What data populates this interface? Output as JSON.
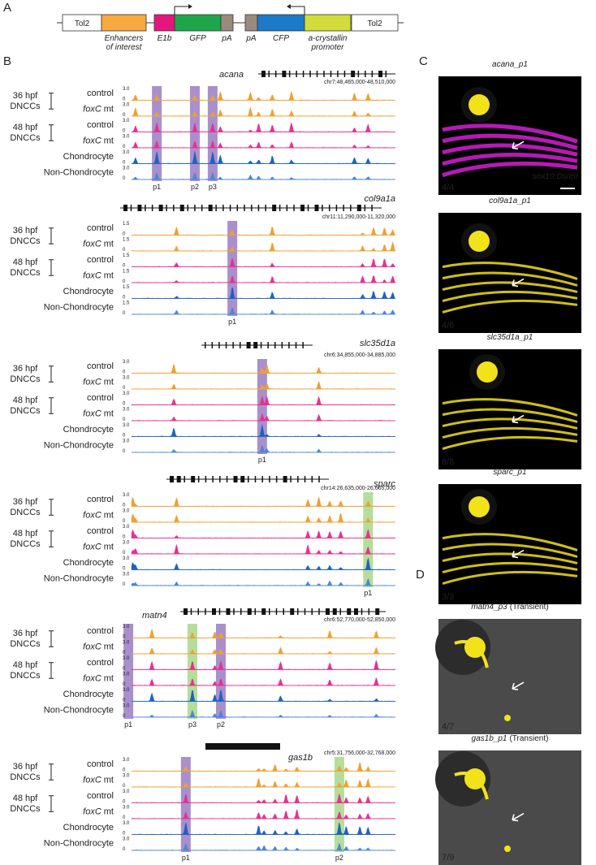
{
  "panel_labels": [
    "A",
    "B",
    "C",
    "D"
  ],
  "construct": {
    "parts": [
      [
        "Tol2"
      ],
      [
        "Enhancers",
        "of interest"
      ],
      [
        "E1b"
      ],
      [
        "GFP"
      ],
      [
        "pA"
      ],
      [
        "pA"
      ],
      [
        "CFP"
      ],
      [
        "a-crystallin",
        "promoter"
      ],
      [
        "Tol2"
      ]
    ]
  },
  "tracks": {
    "labels": {
      "stages": [
        {
          "time": "36 hpf",
          "cell": "DNCCs"
        },
        {
          "time": "48 hpf",
          "cell": "DNCCs"
        }
      ],
      "control": "control",
      "mutant": {
        "gene": "foxC",
        "suffix": "mt"
      },
      "chondrocyte": "Chondrocyte",
      "non_chondrocyte": "Non-Chondrocyte"
    },
    "groups": [
      {
        "gene": "acana",
        "coords": "chr7:48,465,000-48,510,000",
        "scale_max": "3.0",
        "scale_min": 0,
        "regions": [
          {
            "label": "p1",
            "color": "#9a7cc4"
          },
          {
            "label": "p2",
            "color": "#9a7cc4"
          },
          {
            "label": "p3",
            "color": "#9a7cc4"
          }
        ]
      },
      {
        "gene": "col9a1a",
        "coords": "chr11:11,290,000-11,320,000",
        "scale_max": "1.5",
        "scale_min": 0,
        "regions": [
          {
            "label": "p1",
            "color": "#9a7cc4"
          }
        ]
      },
      {
        "gene": "slc35d1a",
        "coords": "chr6:34,855,000-34,885,000",
        "scale_max": "3.0",
        "scale_min": 0,
        "regions": [
          {
            "label": "p1",
            "color": "#9a7cc4"
          }
        ]
      },
      {
        "gene": "sparc",
        "coords": "chr14:26,635,000-26,665,000",
        "scale_max": "3.0",
        "scale_min": 0,
        "regions": [
          {
            "label": "p1",
            "color": "#a8d888"
          }
        ]
      },
      {
        "gene": "matn4",
        "coords": "chr6:52,770,000-52,850,000",
        "scale_max": "3.0",
        "scale_min": 0,
        "regions": [
          {
            "label": "p1",
            "color": "#9a7cc4"
          },
          {
            "label": "p3",
            "color": "#a8d888"
          },
          {
            "label": "p2",
            "color": "#9a7cc4"
          }
        ]
      },
      {
        "gene": "gas1b",
        "coords": "chr5:31,756,000-32,768,000",
        "scale_max": "3.0",
        "scale_min": 0,
        "regions": [
          {
            "label": "p1",
            "color": "#9a7cc4"
          },
          {
            "label": "p2",
            "color": "#a8d888"
          }
        ]
      }
    ]
  },
  "images": {
    "C": [
      {
        "title": "acana_p1",
        "count": "4/4",
        "marker": "sox10:Dsred"
      },
      {
        "title": "col9a1a_p1",
        "count": "4/6"
      },
      {
        "title": "slc35d1a_p1",
        "count": "8/8"
      },
      {
        "title": "sparc_p1",
        "count": "3/3"
      }
    ],
    "D": [
      {
        "title": "matn4_p3",
        "note": "(Transient)",
        "count": "4/7"
      },
      {
        "title": "gas1b_p1",
        "note": "(Transient)",
        "count": "7/9"
      }
    ]
  }
}
